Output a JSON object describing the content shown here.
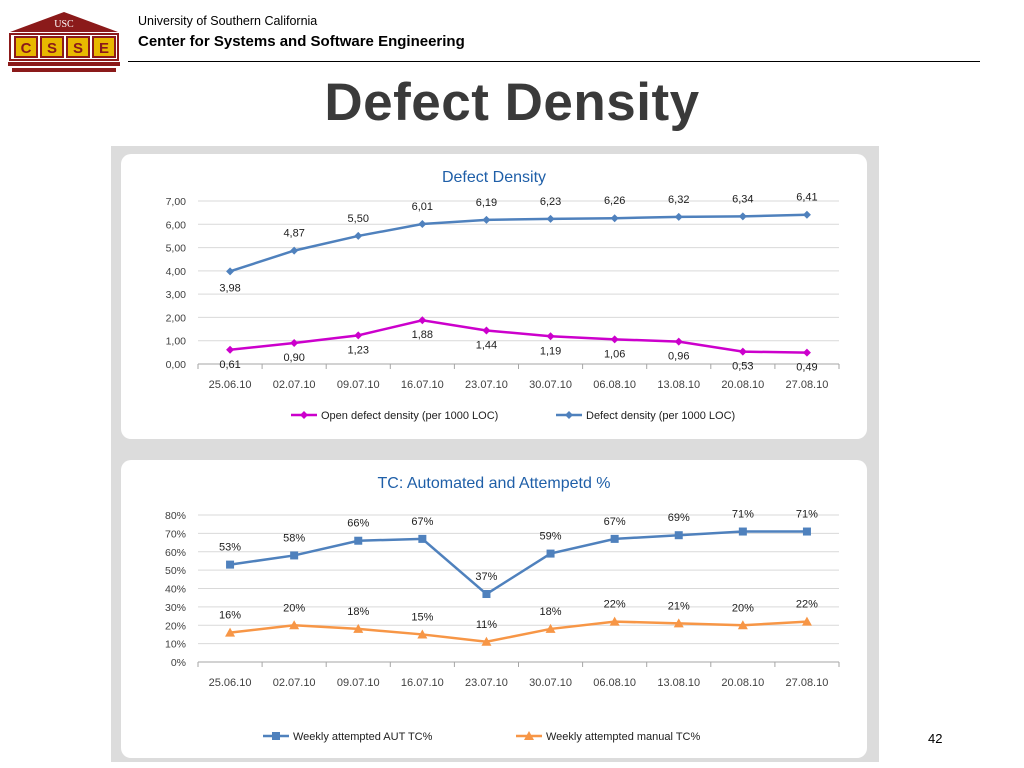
{
  "header": {
    "logo_text": "USC",
    "logo_letters": [
      "C",
      "S",
      "S",
      "E"
    ],
    "university": "University of Southern California",
    "center": "Center for Systems and Software Engineering"
  },
  "slide": {
    "title": "Defect Density",
    "page_number": "42"
  },
  "colors": {
    "blue": "#4f81bd",
    "magenta": "#cc00cc",
    "orange": "#f79646",
    "title_blue": "#1f5fa8",
    "logo_red": "#8b1a1a",
    "logo_gold": "#e8b800"
  },
  "chart_data": [
    {
      "type": "line",
      "title": "Defect Density",
      "categories": [
        "25.06.10",
        "02.07.10",
        "09.07.10",
        "16.07.10",
        "23.07.10",
        "30.07.10",
        "06.08.10",
        "13.08.10",
        "20.08.10",
        "27.08.10"
      ],
      "ylim": [
        0,
        7
      ],
      "yticks": [
        "0,00",
        "1,00",
        "2,00",
        "3,00",
        "4,00",
        "5,00",
        "6,00",
        "7,00"
      ],
      "grid": true,
      "legend_position": "bottom",
      "series": [
        {
          "name": "Open defect density (per 1000 LOC)",
          "color": "#cc00cc",
          "marker": "diamond",
          "values": [
            0.61,
            0.9,
            1.23,
            1.88,
            1.44,
            1.19,
            1.06,
            0.96,
            0.53,
            0.49
          ],
          "labels": [
            "0,61",
            "0,90",
            "1,23",
            "1,88",
            "1,44",
            "1,19",
            "1,06",
            "0,96",
            "0,53",
            "0,49"
          ]
        },
        {
          "name": "Defect density (per 1000 LOC)",
          "color": "#4f81bd",
          "marker": "diamond",
          "values": [
            3.98,
            4.87,
            5.5,
            6.01,
            6.19,
            6.23,
            6.26,
            6.32,
            6.34,
            6.41
          ],
          "labels": [
            "3,98",
            "4,87",
            "5,50",
            "6,01",
            "6,19",
            "6,23",
            "6,26",
            "6,32",
            "6,34",
            "6,41"
          ]
        }
      ]
    },
    {
      "type": "line",
      "title": "TC: Automated and Attempetd %",
      "categories": [
        "25.06.10",
        "02.07.10",
        "09.07.10",
        "16.07.10",
        "23.07.10",
        "30.07.10",
        "06.08.10",
        "13.08.10",
        "20.08.10",
        "27.08.10"
      ],
      "ylim": [
        0,
        80
      ],
      "yticks": [
        "0%",
        "10%",
        "20%",
        "30%",
        "40%",
        "50%",
        "60%",
        "70%",
        "80%"
      ],
      "grid": true,
      "legend_position": "bottom",
      "series": [
        {
          "name": "Weekly attempted AUT TC%",
          "color": "#4f81bd",
          "marker": "square",
          "values": [
            53,
            58,
            66,
            67,
            37,
            59,
            67,
            69,
            71,
            71
          ],
          "labels": [
            "53%",
            "58%",
            "66%",
            "67%",
            "37%",
            "59%",
            "67%",
            "69%",
            "71%",
            "71%"
          ]
        },
        {
          "name": "Weekly attempted manual TC%",
          "color": "#f79646",
          "marker": "triangle",
          "values": [
            16,
            20,
            18,
            15,
            11,
            18,
            22,
            21,
            20,
            22
          ],
          "labels": [
            "16%",
            "20%",
            "18%",
            "15%",
            "11%",
            "18%",
            "22%",
            "21%",
            "20%",
            "22%"
          ]
        }
      ]
    }
  ]
}
